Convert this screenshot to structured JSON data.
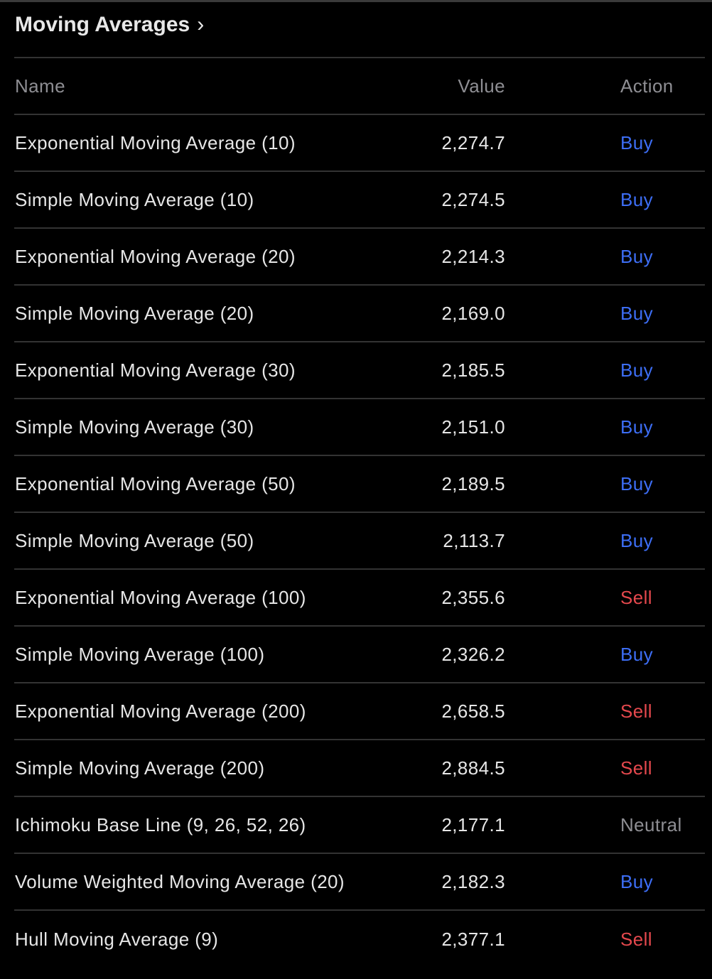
{
  "title": "Moving Averages",
  "colors": {
    "buy": "#3d6ef5",
    "sell": "#e5484d",
    "neutral": "#8e8e93"
  },
  "table": {
    "headers": {
      "name": "Name",
      "value": "Value",
      "action": "Action"
    },
    "rows": [
      {
        "name": "Exponential Moving Average (10)",
        "value": "2,274.7",
        "action": "Buy"
      },
      {
        "name": "Simple Moving Average (10)",
        "value": "2,274.5",
        "action": "Buy"
      },
      {
        "name": "Exponential Moving Average (20)",
        "value": "2,214.3",
        "action": "Buy"
      },
      {
        "name": "Simple Moving Average (20)",
        "value": "2,169.0",
        "action": "Buy"
      },
      {
        "name": "Exponential Moving Average (30)",
        "value": "2,185.5",
        "action": "Buy"
      },
      {
        "name": "Simple Moving Average (30)",
        "value": "2,151.0",
        "action": "Buy"
      },
      {
        "name": "Exponential Moving Average (50)",
        "value": "2,189.5",
        "action": "Buy"
      },
      {
        "name": "Simple Moving Average (50)",
        "value": "2,113.7",
        "action": "Buy"
      },
      {
        "name": "Exponential Moving Average (100)",
        "value": "2,355.6",
        "action": "Sell"
      },
      {
        "name": "Simple Moving Average (100)",
        "value": "2,326.2",
        "action": "Buy"
      },
      {
        "name": "Exponential Moving Average (200)",
        "value": "2,658.5",
        "action": "Sell"
      },
      {
        "name": "Simple Moving Average (200)",
        "value": "2,884.5",
        "action": "Sell"
      },
      {
        "name": "Ichimoku Base Line (9, 26, 52, 26)",
        "value": "2,177.1",
        "action": "Neutral"
      },
      {
        "name": "Volume Weighted Moving Average (20)",
        "value": "2,182.3",
        "action": "Buy"
      },
      {
        "name": "Hull Moving Average (9)",
        "value": "2,377.1",
        "action": "Sell"
      }
    ]
  }
}
